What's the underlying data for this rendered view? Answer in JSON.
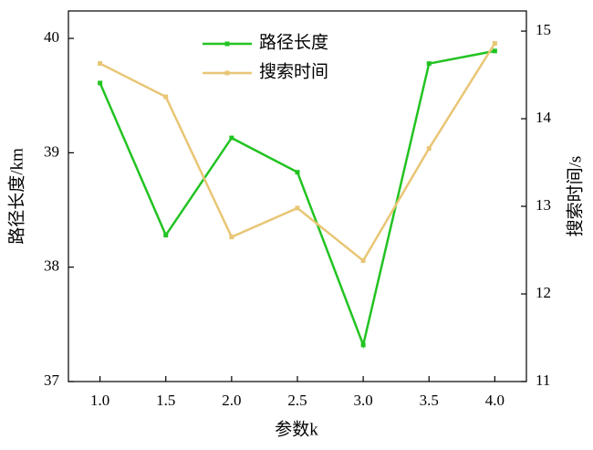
{
  "chart_data": {
    "type": "line",
    "x": [
      1,
      1.5,
      2,
      2.5,
      3,
      3.5,
      4
    ],
    "xlabel": "参数k",
    "ylabel": "路径长度/km",
    "y2label": "搜索时间/s",
    "series": [
      {
        "name": "路径长度",
        "color": "#22c322",
        "values": [
          39.61,
          38.28,
          39.13,
          38.83,
          37.32,
          39.78,
          39.89
        ]
      },
      {
        "name": "搜索时间",
        "color": "#e8c675",
        "axis": "y2",
        "values": [
          14.63,
          14.25,
          12.65,
          12.98,
          12.38,
          13.66,
          14.86
        ]
      }
    ],
    "xlim": [
      0.76,
      4.24
    ],
    "xticks": [
      {
        "value": 1,
        "label": "1.0"
      },
      {
        "value": 1.5,
        "label": "1.5"
      },
      {
        "value": 2,
        "label": "2.0"
      },
      {
        "value": 2.5,
        "label": "2.5"
      },
      {
        "value": 3,
        "label": "3.0"
      },
      {
        "value": 3.5,
        "label": "3.5"
      },
      {
        "value": 4,
        "label": "4.0"
      }
    ],
    "ylim": [
      37,
      40.24
    ],
    "yticks": [
      37,
      38,
      39,
      40
    ],
    "y2lim": [
      11,
      15.23
    ],
    "y2ticks": [
      11,
      12,
      13,
      14,
      15
    ],
    "legend": "upper center"
  }
}
